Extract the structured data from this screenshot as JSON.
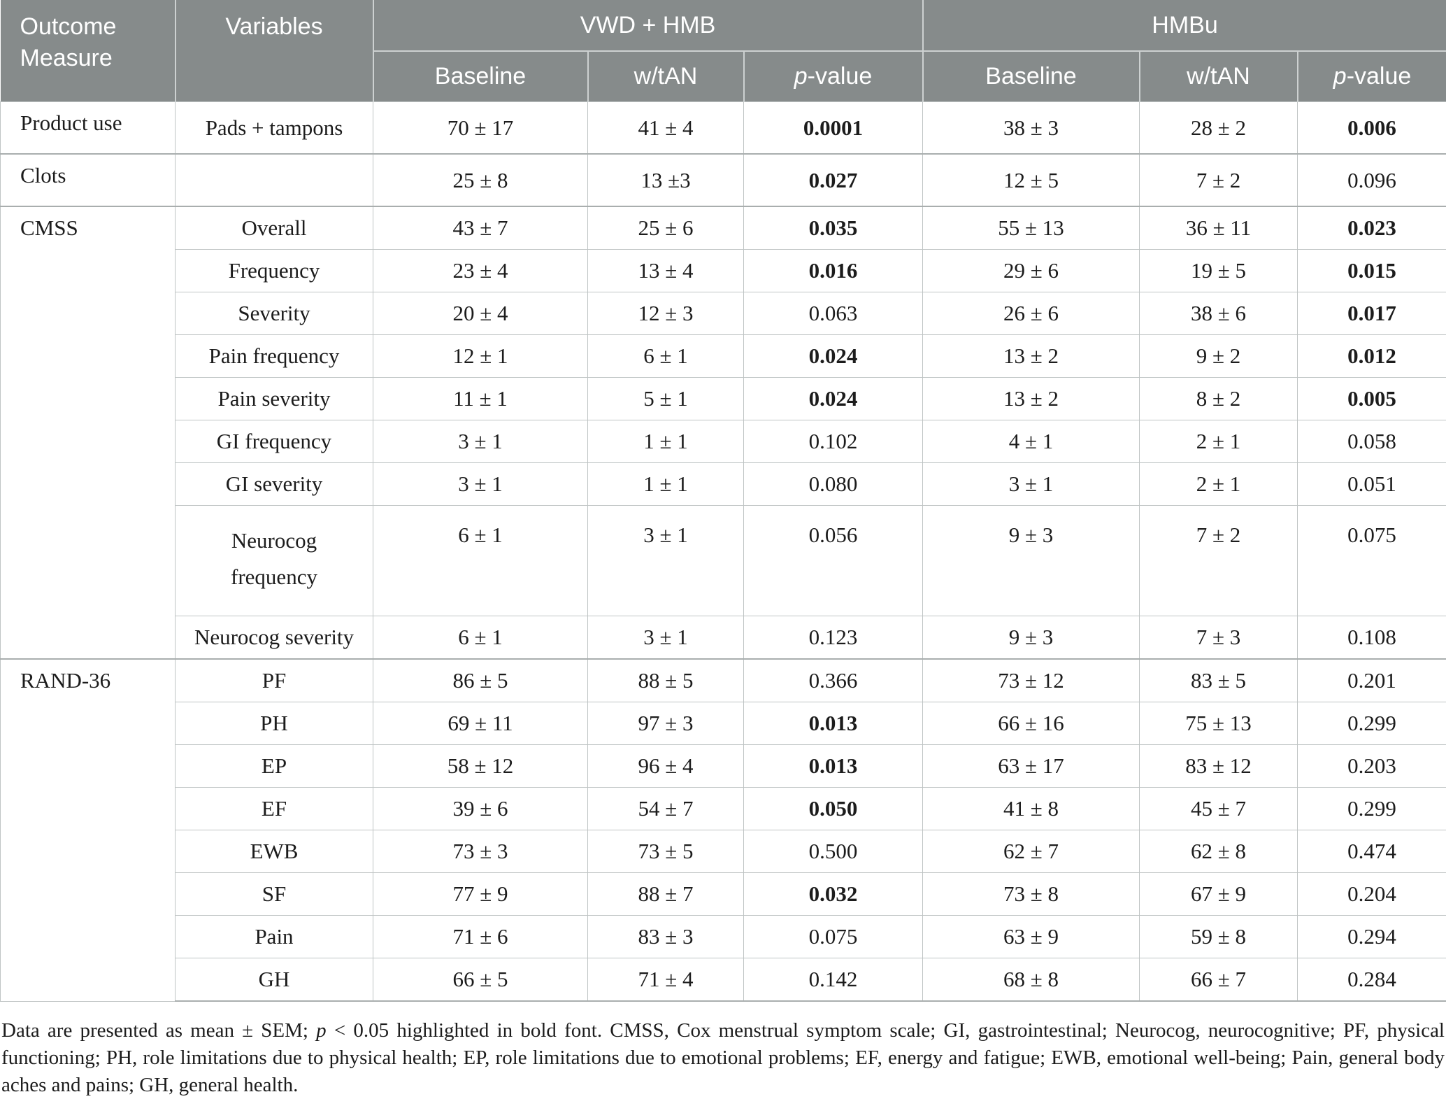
{
  "colors": {
    "header_bg": "#868b8b",
    "header_text": "#ffffff",
    "body_text": "#1c1c1c",
    "grid_line": "#bfc4c4",
    "section_line": "#a9aeae"
  },
  "header": {
    "outcome_measure": "Outcome Measure",
    "variables": "Variables",
    "groups": [
      {
        "label": "VWD + HMB"
      },
      {
        "label": "HMBu"
      }
    ],
    "subcolumns": [
      {
        "label": "Baseline"
      },
      {
        "label": "w/tAN"
      },
      {
        "label": "p-value",
        "italic_first": true
      },
      {
        "label": "Baseline"
      },
      {
        "label": "w/tAN"
      },
      {
        "label": "p-value",
        "italic_first": true
      }
    ]
  },
  "rows": [
    {
      "outcome": "Product use",
      "outcome_rowspan": 1,
      "variable": "Pads + tampons",
      "values": [
        "70 ± 17",
        "41 ± 4",
        "0.0001",
        "38 ± 3",
        "28 ± 2",
        "0.006"
      ],
      "bold_indices": [
        2,
        5
      ],
      "section_start": false
    },
    {
      "outcome": "Clots",
      "outcome_rowspan": 1,
      "variable": "",
      "values": [
        "25 ± 8",
        "13 ±3",
        "0.027",
        "12 ± 5",
        "7 ± 2",
        "0.096"
      ],
      "bold_indices": [
        2
      ],
      "section_start": true
    },
    {
      "outcome": "CMSS",
      "outcome_rowspan": 9,
      "variable": "Overall",
      "values": [
        "43 ± 7",
        "25 ± 6",
        "0.035",
        "55 ± 13",
        "36 ± 11",
        "0.023"
      ],
      "bold_indices": [
        2,
        5
      ],
      "section_start": true
    },
    {
      "variable": "Frequency",
      "values": [
        "23 ± 4",
        "13 ± 4",
        "0.016",
        "29 ± 6",
        "19 ± 5",
        "0.015"
      ],
      "bold_indices": [
        2,
        5
      ]
    },
    {
      "variable": "Severity",
      "values": [
        "20 ± 4",
        "12 ± 3",
        "0.063",
        "26 ± 6",
        "38 ± 6",
        "0.017"
      ],
      "bold_indices": [
        5
      ]
    },
    {
      "variable": "Pain frequency",
      "values": [
        "12 ± 1",
        "6 ± 1",
        "0.024",
        "13 ± 2",
        "9 ± 2",
        "0.012"
      ],
      "bold_indices": [
        2,
        5
      ]
    },
    {
      "variable": "Pain severity",
      "values": [
        "11 ± 1",
        "5 ± 1",
        "0.024",
        "13 ± 2",
        "8 ± 2",
        "0.005"
      ],
      "bold_indices": [
        2,
        5
      ]
    },
    {
      "variable": "GI frequency",
      "values": [
        "3 ± 1",
        "1 ± 1",
        "0.102",
        "4 ± 1",
        "2 ± 1",
        "0.058"
      ],
      "bold_indices": []
    },
    {
      "variable": "GI severity",
      "values": [
        "3 ± 1",
        "1 ± 1",
        "0.080",
        "3 ± 1",
        "2 ± 1",
        "0.051"
      ],
      "bold_indices": []
    },
    {
      "variable": "Neurocog frequency",
      "values": [
        "6 ± 1",
        "3 ± 1",
        "0.056",
        "9 ± 3",
        "7 ± 2",
        "0.075"
      ],
      "bold_indices": [],
      "tall": true
    },
    {
      "variable": "Neurocog severity",
      "values": [
        "6 ± 1",
        "3 ± 1",
        "0.123",
        "9 ± 3",
        "7 ± 3",
        "0.108"
      ],
      "bold_indices": []
    },
    {
      "outcome": "RAND-36",
      "outcome_rowspan": 8,
      "variable": "PF",
      "values": [
        "86 ± 5",
        "88 ± 5",
        "0.366",
        "73 ± 12",
        "83 ± 5",
        "0.201"
      ],
      "bold_indices": [],
      "section_start": true
    },
    {
      "variable": "PH",
      "values": [
        "69 ± 11",
        "97 ± 3",
        "0.013",
        "66 ± 16",
        "75 ± 13",
        "0.299"
      ],
      "bold_indices": [
        2
      ]
    },
    {
      "variable": "EP",
      "values": [
        "58 ± 12",
        "96 ± 4",
        "0.013",
        "63 ± 17",
        "83 ± 12",
        "0.203"
      ],
      "bold_indices": [
        2
      ]
    },
    {
      "variable": "EF",
      "values": [
        "39 ± 6",
        "54 ± 7",
        "0.050",
        "41 ± 8",
        "45 ± 7",
        "0.299"
      ],
      "bold_indices": [
        2
      ]
    },
    {
      "variable": "EWB",
      "values": [
        "73 ± 3",
        "73 ± 5",
        "0.500",
        "62 ± 7",
        "62 ± 8",
        "0.474"
      ],
      "bold_indices": []
    },
    {
      "variable": "SF",
      "values": [
        "77 ± 9",
        "88 ± 7",
        "0.032",
        "73 ± 8",
        "67 ± 9",
        "0.204"
      ],
      "bold_indices": [
        2
      ]
    },
    {
      "variable": "Pain",
      "values": [
        "71 ± 6",
        "83 ± 3",
        "0.075",
        "63 ± 9",
        "59 ± 8",
        "0.294"
      ],
      "bold_indices": []
    },
    {
      "variable": "GH",
      "values": [
        "66 ± 5",
        "71 ± 4",
        "0.142",
        "68 ± 8",
        "66 ± 7",
        "0.284"
      ],
      "bold_indices": []
    }
  ],
  "footnote": {
    "prefix": "Data are presented as mean ± SEM; ",
    "italic_term": "p",
    "suffix": " < 0.05 highlighted in bold font. CMSS, Cox menstrual symptom scale; GI, gastrointestinal; Neurocog, neurocognitive; PF, physical functioning; PH, role limitations due to physical health; EP, role limitations due to emotional problems; EF, energy and fatigue; EWB, emotional well-being; Pain, general body aches and pains; GH, general health."
  }
}
